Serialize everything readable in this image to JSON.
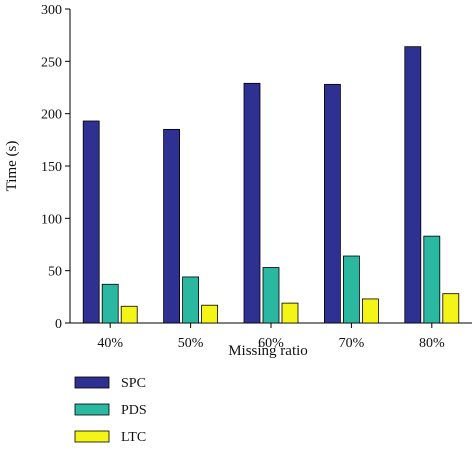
{
  "chart_data": {
    "type": "bar",
    "title": "",
    "xlabel": "Missing ratio",
    "ylabel": "Time (s)",
    "categories": [
      "40%",
      "50%",
      "60%",
      "70%",
      "80%"
    ],
    "ylim": [
      0,
      300
    ],
    "yticks": [
      0,
      50,
      100,
      150,
      200,
      250,
      300
    ],
    "grid": false,
    "legend": "bottom-left",
    "series": [
      {
        "name": "SPC",
        "color": "#2e3192",
        "values": [
          193,
          185,
          229,
          228,
          264
        ]
      },
      {
        "name": "PDS",
        "color": "#2bb8a0",
        "values": [
          37,
          44,
          53,
          64,
          83
        ]
      },
      {
        "name": "LTC",
        "color": "#f4f416",
        "values": [
          16,
          17,
          19,
          23,
          28
        ]
      }
    ]
  }
}
